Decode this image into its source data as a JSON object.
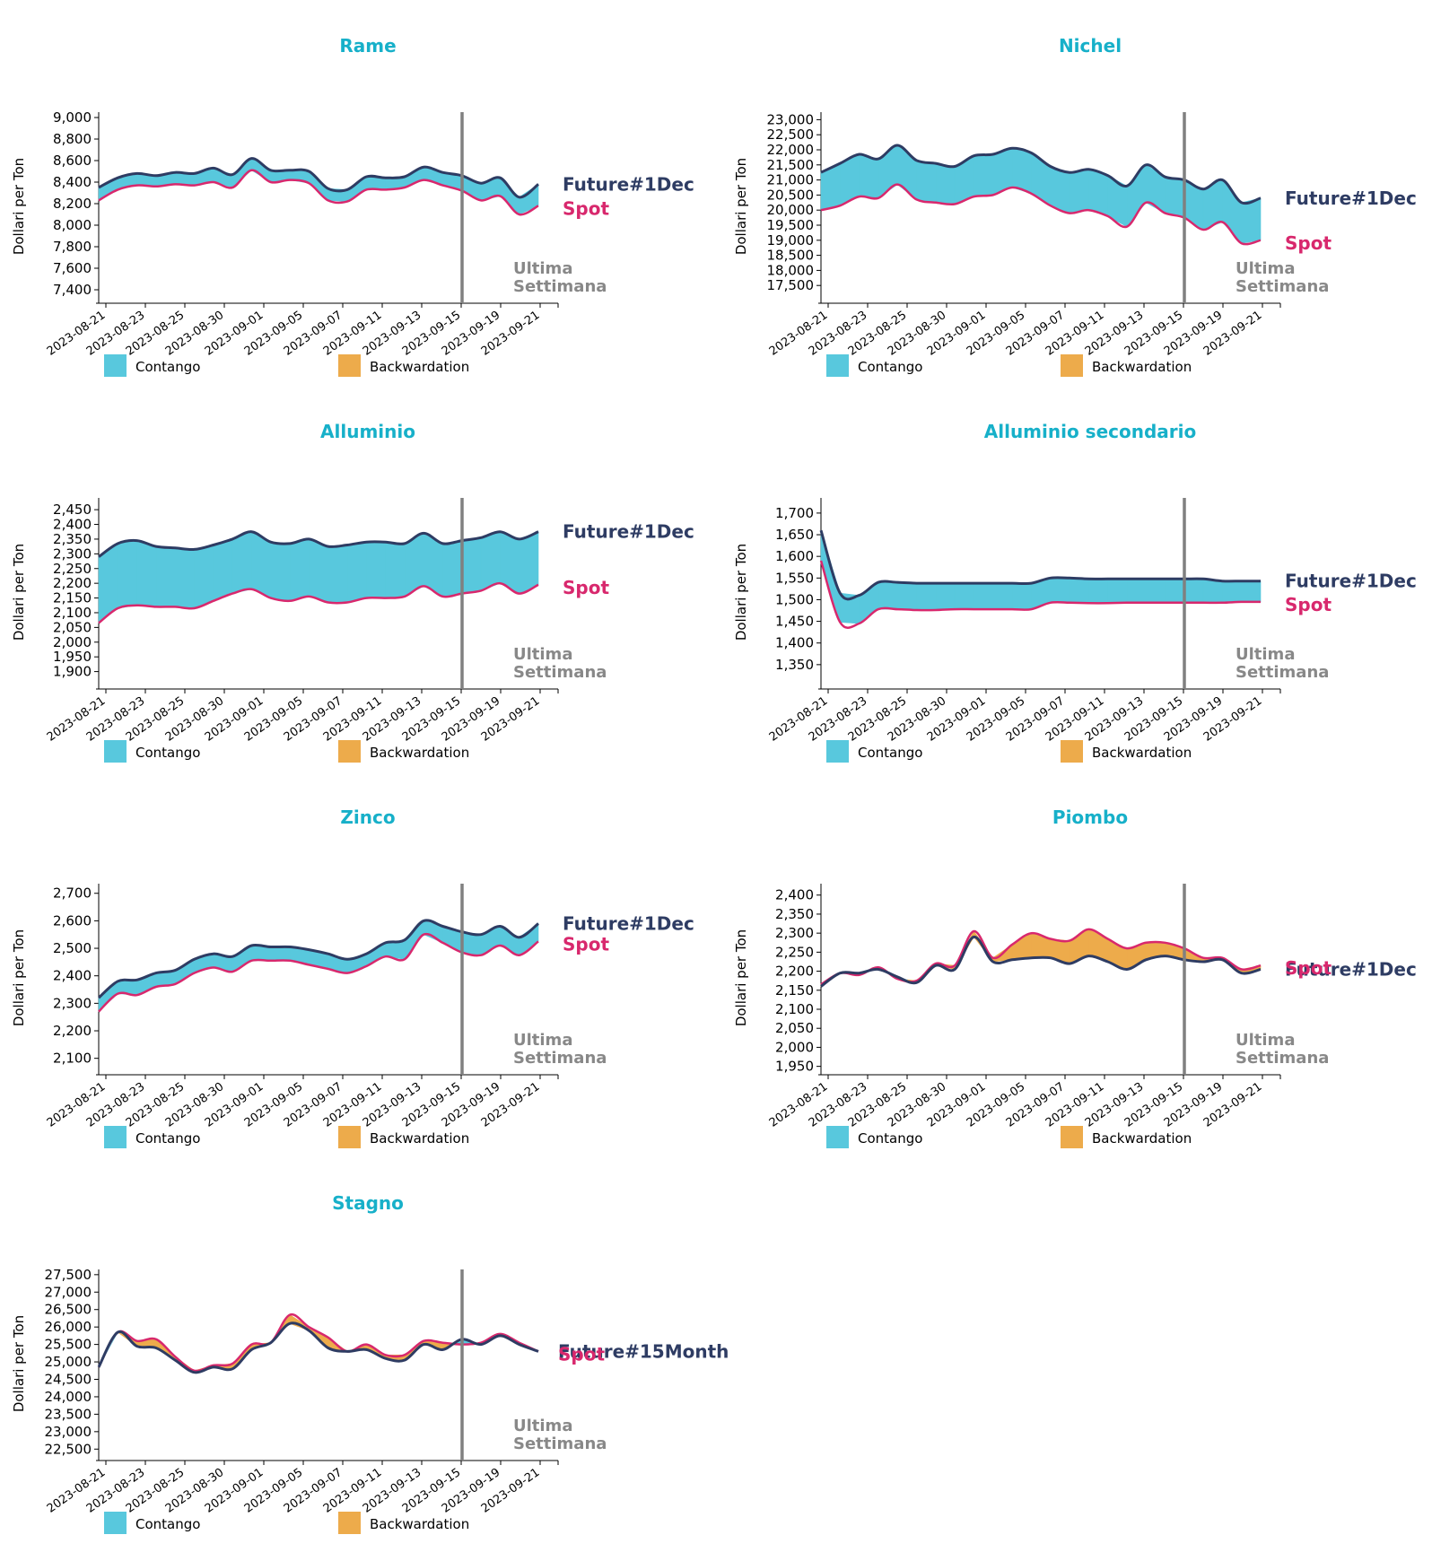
{
  "style": {
    "title_color": "#17b0c9",
    "future_color": "#2e3c63",
    "spot_color": "#d8286d",
    "contango_color": "#58c8dd",
    "backwardation_color": "#edab4b",
    "week_line_color": "#808080",
    "week_label_color": "#888888"
  },
  "common": {
    "y_axis_label": "Dollari per Ton",
    "week_label_line1": "Ultima",
    "week_label_line2": "Settimana",
    "week_marker_date": "2023-09-15",
    "legend_contango": "Contango",
    "legend_backwardation": "Backwardation",
    "spot_label": "Spot",
    "x_ticks": [
      "2023-08-21",
      "2023-08-23",
      "2023-08-25",
      "2023-08-30",
      "2023-09-01",
      "2023-09-05",
      "2023-09-07",
      "2023-09-11",
      "2023-09-13",
      "2023-09-15",
      "2023-09-19",
      "2023-09-21"
    ]
  },
  "chart_data": [
    {
      "type": "area",
      "title": "Rame",
      "ylabel": "Dollari per Ton",
      "ylim": [
        7300,
        9050
      ],
      "yticks": [
        7400,
        7600,
        7800,
        8000,
        8200,
        8400,
        8600,
        8800,
        9000
      ],
      "future_label": "Future#1Dec",
      "future": [
        8350,
        8440,
        8480,
        8460,
        8490,
        8480,
        8530,
        8470,
        8620,
        8510,
        8510,
        8500,
        8340,
        8330,
        8450,
        8440,
        8450,
        8540,
        8490,
        8460,
        8390,
        8440,
        8260,
        8380
      ],
      "spot": [
        8230,
        8330,
        8370,
        8360,
        8380,
        8370,
        8400,
        8350,
        8510,
        8400,
        8420,
        8390,
        8230,
        8220,
        8330,
        8330,
        8350,
        8420,
        8370,
        8320,
        8230,
        8270,
        8100,
        8180
      ]
    },
    {
      "type": "area",
      "title": "Nichel",
      "ylabel": "Dollari per Ton",
      "ylim": [
        17000,
        23250
      ],
      "yticks": [
        17500,
        18000,
        18500,
        19000,
        19500,
        20000,
        20500,
        21000,
        21500,
        22000,
        22500,
        23000
      ],
      "future_label": "Future#1Dec",
      "future": [
        21250,
        21550,
        21850,
        21700,
        22150,
        21650,
        21550,
        21450,
        21800,
        21850,
        22050,
        21900,
        21450,
        21250,
        21350,
        21150,
        20800,
        21500,
        21100,
        21000,
        20700,
        21000,
        20250,
        20400
      ],
      "spot": [
        20000,
        20150,
        20450,
        20400,
        20850,
        20350,
        20250,
        20200,
        20450,
        20500,
        20750,
        20550,
        20150,
        19900,
        20000,
        19800,
        19450,
        20250,
        19900,
        19750,
        19350,
        19600,
        18900,
        19000
      ],
      "week_marker_offset": 1
    },
    {
      "type": "area",
      "title": "Alluminio",
      "ylabel": "Dollari per Ton",
      "ylim": [
        1850,
        2490
      ],
      "yticks": [
        1900,
        1950,
        2000,
        2050,
        2100,
        2150,
        2200,
        2250,
        2300,
        2350,
        2400,
        2450
      ],
      "future_label": "Future#1Dec",
      "future": [
        2290,
        2335,
        2345,
        2325,
        2320,
        2315,
        2330,
        2350,
        2375,
        2340,
        2335,
        2350,
        2325,
        2330,
        2340,
        2340,
        2335,
        2370,
        2335,
        2345,
        2355,
        2375,
        2350,
        2375
      ],
      "spot": [
        2065,
        2115,
        2125,
        2120,
        2120,
        2115,
        2140,
        2165,
        2180,
        2150,
        2140,
        2155,
        2135,
        2135,
        2150,
        2150,
        2155,
        2190,
        2155,
        2165,
        2175,
        2200,
        2165,
        2195
      ]
    },
    {
      "type": "area",
      "title": "Alluminio secondario",
      "ylabel": "Dollari per Ton",
      "ylim": [
        1300,
        1735
      ],
      "yticks": [
        1350,
        1400,
        1450,
        1500,
        1550,
        1600,
        1650,
        1700
      ],
      "future_label": "Future#1Dec",
      "future": [
        1660,
        1515,
        1510,
        1540,
        1540,
        1538,
        1538,
        1538,
        1538,
        1538,
        1538,
        1538,
        1550,
        1550,
        1548,
        1548,
        1548,
        1548,
        1548,
        1548,
        1548,
        1543,
        1543,
        1543
      ],
      "spot": [
        1590,
        1448,
        1445,
        1478,
        1478,
        1476,
        1476,
        1478,
        1478,
        1478,
        1478,
        1478,
        1493,
        1493,
        1492,
        1492,
        1493,
        1493,
        1493,
        1493,
        1493,
        1493,
        1495,
        1495
      ]
    },
    {
      "type": "area",
      "title": "Zinco",
      "ylabel": "Dollari per Ton",
      "ylim": [
        2050,
        2735
      ],
      "yticks": [
        2100,
        2200,
        2300,
        2400,
        2500,
        2600,
        2700
      ],
      "future_label": "Future#1Dec",
      "future": [
        2320,
        2380,
        2385,
        2410,
        2420,
        2460,
        2480,
        2470,
        2510,
        2505,
        2505,
        2495,
        2480,
        2460,
        2480,
        2520,
        2530,
        2600,
        2580,
        2560,
        2550,
        2580,
        2540,
        2590
      ],
      "spot": [
        2270,
        2335,
        2330,
        2360,
        2370,
        2410,
        2430,
        2415,
        2455,
        2455,
        2455,
        2440,
        2425,
        2410,
        2435,
        2470,
        2460,
        2550,
        2520,
        2485,
        2475,
        2510,
        2475,
        2525
      ]
    },
    {
      "type": "area",
      "title": "Piombo",
      "ylabel": "Dollari per Ton",
      "ylim": [
        1935,
        2430
      ],
      "yticks": [
        1950,
        2000,
        2050,
        2100,
        2150,
        2200,
        2250,
        2300,
        2350,
        2400
      ],
      "future_label": "Future#1Dec",
      "future": [
        2160,
        2195,
        2195,
        2205,
        2185,
        2170,
        2215,
        2205,
        2290,
        2225,
        2230,
        2235,
        2235,
        2220,
        2240,
        2225,
        2205,
        2230,
        2240,
        2230,
        2225,
        2230,
        2195,
        2205
      ],
      "spot": [
        2165,
        2195,
        2190,
        2210,
        2180,
        2175,
        2220,
        2215,
        2305,
        2235,
        2270,
        2300,
        2285,
        2280,
        2310,
        2285,
        2260,
        2275,
        2275,
        2260,
        2235,
        2235,
        2205,
        2215
      ]
    },
    {
      "type": "area",
      "title": "Stagno",
      "ylabel": "Dollari per Ton",
      "ylim": [
        22250,
        27650
      ],
      "yticks": [
        22500,
        23000,
        23500,
        24000,
        24500,
        25000,
        25500,
        26000,
        26500,
        27000,
        27500
      ],
      "future_label": "Future#15Month",
      "future": [
        24850,
        25850,
        25450,
        25400,
        25050,
        24700,
        24850,
        24800,
        25350,
        25550,
        26100,
        25900,
        25400,
        25300,
        25350,
        25100,
        25050,
        25500,
        25350,
        25650,
        25500,
        25750,
        25500,
        25300
      ],
      "spot": [
        24850,
        25850,
        25600,
        25650,
        25150,
        24750,
        24900,
        24950,
        25500,
        25550,
        26350,
        26000,
        25700,
        25300,
        25500,
        25200,
        25200,
        25600,
        25550,
        25500,
        25550,
        25800,
        25550,
        25300
      ]
    }
  ]
}
